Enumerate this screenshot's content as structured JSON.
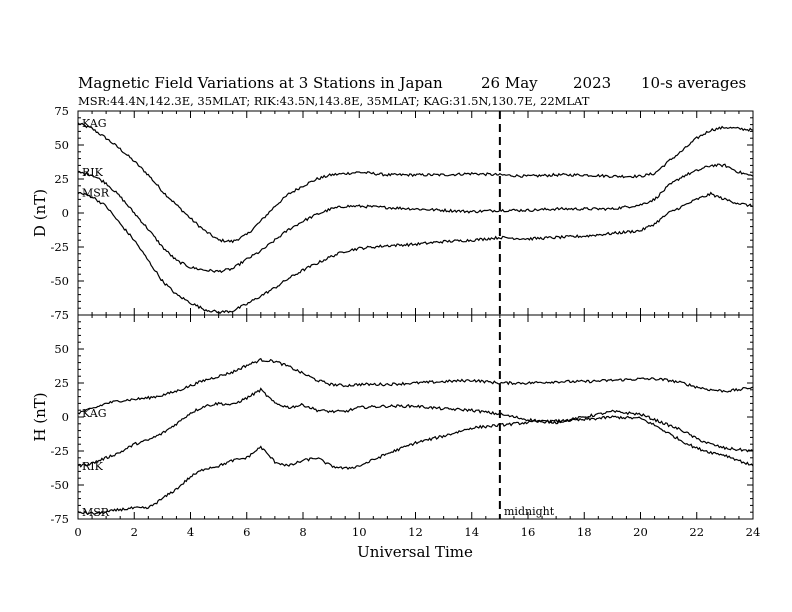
{
  "title": {
    "main": "Magnetic Field Variations at 3 Stations in Japan",
    "date": "26 May",
    "year": "2023",
    "averaging": "10-s averages"
  },
  "subtitle": "MSR:44.4N,142.3E, 35MLAT;  RIK:43.5N,143.8E, 35MLAT;  KAG:31.5N,130.7E, 22MLAT",
  "chart_data": [
    {
      "type": "line",
      "panel": "D",
      "ylabel": "D (nT)",
      "ylim": [
        -75,
        75
      ],
      "yticks": [
        75,
        50,
        25,
        0,
        -25,
        -50,
        -75
      ],
      "xlim": [
        0,
        24
      ],
      "grid": false,
      "series": [
        {
          "name": "KAG",
          "x": [
            0,
            0.5,
            1,
            1.5,
            2,
            2.5,
            3,
            3.5,
            4,
            4.5,
            5,
            5.5,
            6,
            6.5,
            7,
            7.5,
            8,
            8.5,
            9,
            9.5,
            10,
            11,
            12,
            13,
            14,
            15,
            16,
            17,
            18,
            19,
            20,
            20.5,
            21,
            21.5,
            22,
            22.5,
            23,
            23.5,
            24
          ],
          "values": [
            66,
            62,
            55,
            47,
            38,
            28,
            16,
            6,
            -4,
            -13,
            -20,
            -21,
            -16,
            -6,
            5,
            14,
            20,
            25,
            28,
            29,
            30,
            28,
            28,
            28,
            29,
            28,
            27,
            28,
            28,
            27,
            27,
            29,
            38,
            46,
            55,
            61,
            63,
            62,
            61
          ]
        },
        {
          "name": "RIK",
          "x": [
            0,
            0.5,
            1,
            1.5,
            2,
            2.5,
            3,
            3.5,
            4,
            4.5,
            5,
            5.5,
            6,
            6.5,
            7,
            7.5,
            8,
            8.5,
            9,
            9.5,
            10,
            11,
            12,
            13,
            14,
            15,
            16,
            17,
            18,
            19,
            20,
            20.5,
            21,
            21.5,
            22,
            22.5,
            23,
            23.5,
            24
          ],
          "values": [
            30,
            28,
            22,
            12,
            0,
            -12,
            -25,
            -35,
            -40,
            -42,
            -43,
            -41,
            -34,
            -28,
            -20,
            -12,
            -6,
            -1,
            3,
            5,
            5,
            4,
            3,
            2,
            1,
            2,
            2,
            3,
            3,
            3,
            6,
            10,
            20,
            27,
            31,
            35,
            35,
            30,
            27
          ]
        },
        {
          "name": "MSR",
          "x": [
            0,
            0.5,
            1,
            1.5,
            2,
            2.5,
            3,
            3.5,
            4,
            4.5,
            5,
            5.5,
            6,
            6.5,
            7,
            7.5,
            8,
            8.5,
            9,
            9.5,
            10,
            11,
            12,
            13,
            14,
            15,
            16,
            17,
            18,
            19,
            20,
            20.5,
            21,
            21.5,
            22,
            22.5,
            23,
            23.5,
            24
          ],
          "values": [
            15,
            12,
            5,
            -8,
            -20,
            -35,
            -50,
            -60,
            -66,
            -71,
            -73,
            -72,
            -67,
            -61,
            -55,
            -48,
            -42,
            -37,
            -32,
            -28,
            -26,
            -24,
            -23,
            -21,
            -20,
            -18,
            -19,
            -18,
            -17,
            -15,
            -13,
            -8,
            0,
            5,
            10,
            14,
            10,
            7,
            5
          ]
        }
      ]
    },
    {
      "type": "line",
      "panel": "H",
      "ylabel": "H (nT)",
      "ylim": [
        -75,
        75
      ],
      "yticks": [
        75,
        50,
        25,
        0,
        -25,
        -50,
        -75
      ],
      "xlim": [
        0,
        24
      ],
      "xticks": [
        0,
        2,
        4,
        6,
        8,
        10,
        12,
        14,
        16,
        18,
        20,
        22,
        24
      ],
      "xlabel": "Universal Time",
      "grid": false,
      "series": [
        {
          "name": "KAG",
          "x": [
            0,
            0.5,
            1,
            1.5,
            2,
            2.5,
            3,
            3.5,
            4,
            4.5,
            5,
            5.5,
            6,
            6.5,
            7,
            7.5,
            8,
            8.5,
            9,
            9.5,
            10,
            11,
            12,
            13,
            14,
            15,
            16,
            17,
            18,
            19,
            20,
            20.5,
            21,
            21.5,
            22,
            22.5,
            23,
            23.5,
            24
          ],
          "values": [
            3,
            6,
            10,
            12,
            13,
            14,
            16,
            19,
            23,
            27,
            30,
            33,
            38,
            42,
            41,
            37,
            32,
            27,
            24,
            23,
            24,
            24,
            25,
            26,
            27,
            25,
            25,
            26,
            26,
            27,
            28,
            28,
            27,
            25,
            22,
            20,
            19,
            20,
            22
          ]
        },
        {
          "name": "RIK",
          "x": [
            0,
            0.5,
            1,
            1.5,
            2,
            2.5,
            3,
            3.5,
            4,
            4.5,
            5,
            5.5,
            6,
            6.5,
            7,
            7.5,
            8,
            8.5,
            9,
            9.5,
            10,
            11,
            12,
            13,
            14,
            15,
            16,
            17,
            18,
            19,
            20,
            20.5,
            21,
            21.5,
            22,
            22.5,
            23,
            23.5,
            24
          ],
          "values": [
            -36,
            -34,
            -30,
            -26,
            -20,
            -17,
            -12,
            -5,
            3,
            8,
            10,
            9,
            14,
            20,
            10,
            7,
            9,
            5,
            4,
            4,
            7,
            8,
            8,
            6,
            5,
            2,
            -2,
            -4,
            0,
            4,
            2,
            -2,
            -6,
            -10,
            -16,
            -20,
            -23,
            -24,
            -25
          ]
        },
        {
          "name": "MSR",
          "x": [
            0,
            0.5,
            1,
            1.5,
            2,
            2.5,
            3,
            3.5,
            4,
            4.5,
            5,
            5.5,
            6,
            6.5,
            7,
            7.5,
            8,
            8.5,
            9,
            9.5,
            10,
            11,
            12,
            13,
            14,
            15,
            16,
            17,
            18,
            19,
            20,
            20.5,
            21,
            21.5,
            22,
            22.5,
            23,
            23.5,
            24
          ],
          "values": [
            -70,
            -71,
            -70,
            -68,
            -67,
            -67,
            -60,
            -53,
            -44,
            -38,
            -36,
            -32,
            -30,
            -22,
            -33,
            -36,
            -32,
            -30,
            -36,
            -38,
            -36,
            -27,
            -19,
            -14,
            -8,
            -6,
            -4,
            -3,
            -2,
            0,
            -1,
            -6,
            -12,
            -18,
            -23,
            -26,
            -28,
            -32,
            -36
          ]
        }
      ]
    }
  ],
  "annotation": {
    "midnight_ut": 15,
    "midnight_label": "midnight"
  }
}
